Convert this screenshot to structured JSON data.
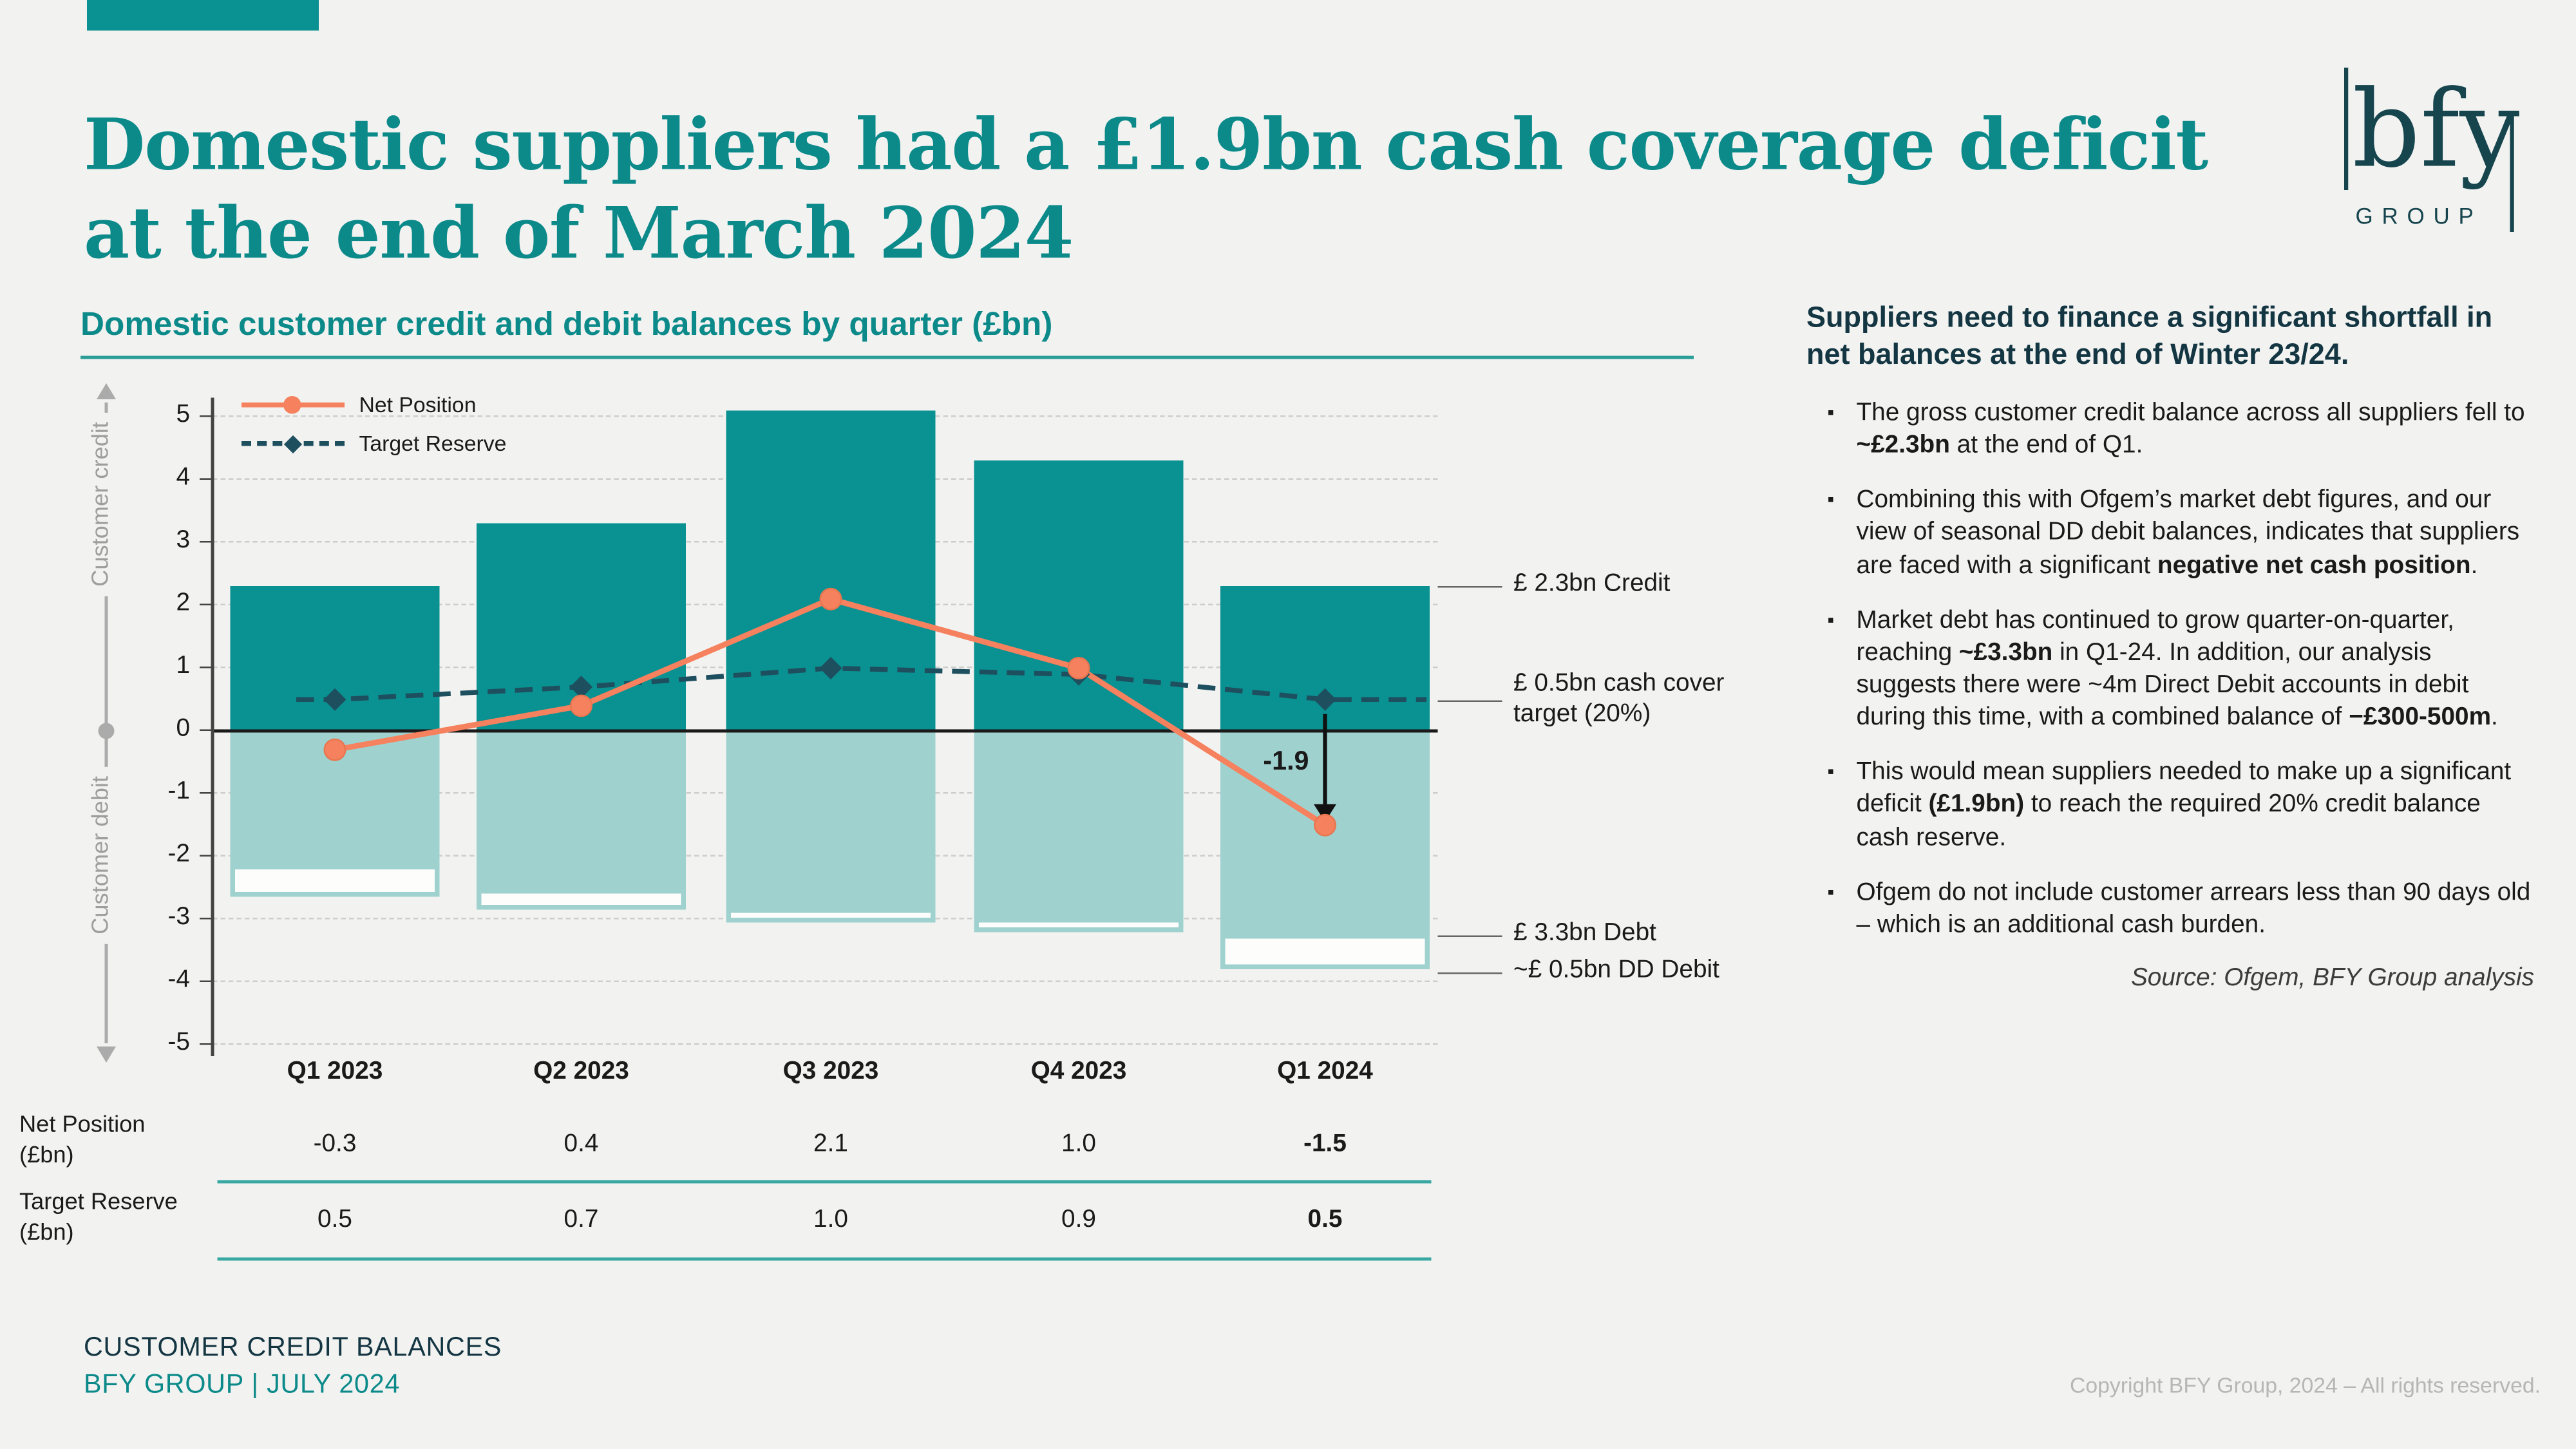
{
  "colors": {
    "teal": "#0c8a8a",
    "teal_bar": "#0a9191",
    "teal_light": "#9fd2cf",
    "orange_net": "#f5815e",
    "navy_target": "#1e4f5f",
    "table_rule": "#3aa8a2",
    "dark_heading": "#133642",
    "copyright_gray": "#b6b6b6"
  },
  "header": {
    "title_line1": "Domestic suppliers had a £1.9bn cash coverage deficit",
    "title_line2": "at the end of March 2024",
    "logo_text": "bfy",
    "logo_subtext": "GROUP"
  },
  "chart_data": {
    "type": "bar",
    "subtype": "diverging bar + line combo",
    "title": "Domestic customer credit and debit balances by quarter (£bn)",
    "categories": [
      "Q1 2023",
      "Q2 2023",
      "Q3 2023",
      "Q4 2023",
      "Q1 2024"
    ],
    "series": [
      {
        "name": "Customer credit balance",
        "type": "bar",
        "color": "#0a9191",
        "values": [
          2.3,
          3.3,
          5.1,
          4.3,
          2.3
        ]
      },
      {
        "name": "Customer debit balance",
        "type": "bar",
        "color": "#9fd2cf",
        "values": [
          -2.2,
          -2.6,
          -2.9,
          -3.05,
          -3.3
        ]
      },
      {
        "name": "DD debit segment",
        "type": "bar",
        "color": "#ffffff",
        "values": [
          -0.45,
          -0.25,
          -0.15,
          -0.15,
          -0.5
        ]
      },
      {
        "name": "Net Position",
        "type": "line",
        "color": "#f5815e",
        "values": [
          -0.3,
          0.4,
          2.1,
          1.0,
          -1.5
        ]
      },
      {
        "name": "Target Reserve",
        "type": "dashed-line",
        "color": "#1e4f5f",
        "values": [
          0.5,
          0.7,
          1.0,
          0.9,
          0.5
        ]
      }
    ],
    "ylim": [
      -5,
      5
    ],
    "yticks": [
      5,
      4,
      3,
      2,
      1,
      0,
      -1,
      -2,
      -3,
      -4,
      -5
    ],
    "grid": "dashed horizontal",
    "legend_position": "top-left",
    "ylabel_top": "Customer credit",
    "ylabel_bottom": "Customer debit",
    "annotations": [
      {
        "id": "credit",
        "text": "£ 2.3bn Credit",
        "y_value": 2.3
      },
      {
        "id": "target",
        "text": "£ 0.5bn cash cover target (20%)",
        "y_value": 0.5,
        "two_line": true
      },
      {
        "id": "debt",
        "text": "£ 3.3bn Debt",
        "y_value": -3.25
      },
      {
        "id": "dd",
        "text": "~£ 0.5bn DD Debit",
        "y_value": -3.85
      },
      {
        "id": "deficit",
        "text": "-1.9",
        "from": 0.5,
        "to": -1.5,
        "category": "Q1 2024"
      }
    ]
  },
  "table": {
    "rows": [
      {
        "label": "Net Position (£bn)",
        "values": [
          "-0.3",
          "0.4",
          "2.1",
          "1.0",
          "-1.5"
        ],
        "bold_last": true
      },
      {
        "label": "Target Reserve (£bn)",
        "values": [
          "0.5",
          "0.7",
          "1.0",
          "0.9",
          "0.5"
        ],
        "bold_last": true
      }
    ]
  },
  "panel": {
    "heading": "Suppliers need to finance a significant shortfall in net balances at the end of Winter 23/24.",
    "bullets": [
      [
        {
          "t": "The gross customer credit balance across all suppliers fell to "
        },
        {
          "t": "~£2.3bn",
          "b": true
        },
        {
          "t": " at the end of Q1."
        }
      ],
      [
        {
          "t": "Combining this with Ofgem’s market debt figures, and our view of seasonal DD debit balances, indicates that suppliers are faced with a significant "
        },
        {
          "t": "negative net cash position",
          "b": true
        },
        {
          "t": "."
        }
      ],
      [
        {
          "t": "Market debt has continued to grow quarter-on-quarter, reaching "
        },
        {
          "t": "~£3.3bn",
          "b": true
        },
        {
          "t": " in Q1-24. In addition, our analysis suggests there were ~4m Direct Debit accounts in debit during this time, with a combined balance of "
        },
        {
          "t": "−£300-500m",
          "b": true
        },
        {
          "t": "."
        }
      ],
      [
        {
          "t": "This would mean suppliers needed to make up a significant deficit "
        },
        {
          "t": "(£1.9bn)",
          "b": true
        },
        {
          "t": " to reach the required 20% credit balance cash reserve."
        }
      ],
      [
        {
          "t": "Ofgem do not include customer arrears less than 90 days old – which is an additional cash burden."
        }
      ]
    ],
    "source": "Source: Ofgem, BFY Group analysis"
  },
  "footer": {
    "line1": "CUSTOMER CREDIT BALANCES",
    "line2": "BFY GROUP | JULY 2024",
    "copyright": "Copyright BFY Group, 2024 – All rights reserved."
  }
}
